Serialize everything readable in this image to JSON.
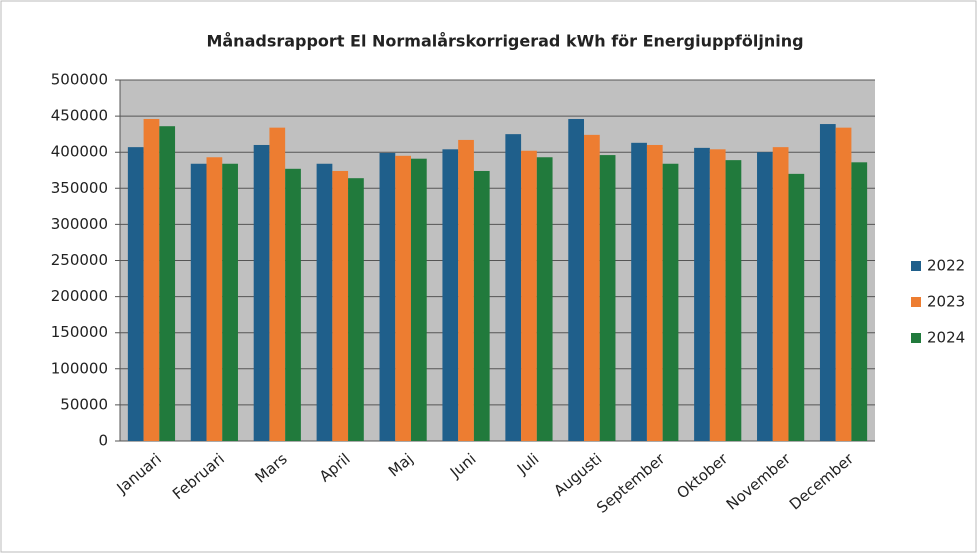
{
  "chart_data": {
    "type": "bar",
    "title": "Månadsrapport El Normalårskorrigerad  kWh för Energiuppföljning",
    "categories": [
      "Januari",
      "Februari",
      "Mars",
      "April",
      "Maj",
      "Juni",
      "Juli",
      "Augusti",
      "September",
      "Oktober",
      "November",
      "December"
    ],
    "series": [
      {
        "name": "2022",
        "color": "#1f5f8b",
        "values": [
          407000,
          384000,
          410000,
          384000,
          399000,
          404000,
          425000,
          446000,
          413000,
          406000,
          400000,
          439000
        ]
      },
      {
        "name": "2023",
        "color": "#ed7d31",
        "values": [
          446000,
          393000,
          434000,
          374000,
          395000,
          417000,
          402000,
          424000,
          410000,
          404000,
          407000,
          434000
        ]
      },
      {
        "name": "2024",
        "color": "#217a3c",
        "values": [
          436000,
          384000,
          377000,
          364000,
          391000,
          374000,
          393000,
          396000,
          384000,
          389000,
          370000,
          386000
        ]
      }
    ],
    "ylim": [
      0,
      500000
    ],
    "yticks": [
      0,
      50000,
      100000,
      150000,
      200000,
      250000,
      300000,
      350000,
      400000,
      450000,
      500000
    ],
    "grid": true,
    "legend": "right"
  }
}
